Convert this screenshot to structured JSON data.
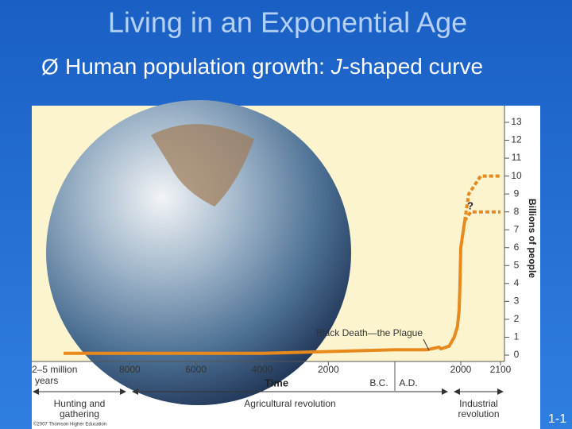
{
  "slide": {
    "title": "Living in an Exponential Age",
    "bullet_prefix": "Human population growth: ",
    "bullet_em": "J",
    "bullet_suffix": "-shaped curve",
    "page_number": "1-1"
  },
  "chart_data": {
    "type": "line",
    "y_label": "Billions of people",
    "x_label": "Time",
    "x_start_label": [
      "2–5 million",
      "years"
    ],
    "x": [
      -10000,
      -8000,
      -6000,
      -4000,
      -2000,
      0,
      1000,
      1340,
      1400,
      1650,
      1800,
      1900,
      1950,
      1970,
      2000,
      2010
    ],
    "values": [
      0.1,
      0.1,
      0.1,
      0.1,
      0.2,
      0.3,
      0.3,
      0.45,
      0.35,
      0.5,
      1,
      1.6,
      2.5,
      3.7,
      6,
      7.5
    ],
    "color": "#e8891e",
    "projections": [
      {
        "x": [
          2010,
          2020,
          2050,
          2100
        ],
        "values": [
          7.5,
          9,
          10,
          10
        ]
      },
      {
        "x": [
          2010,
          2025,
          2100
        ],
        "values": [
          7.5,
          8,
          8
        ]
      }
    ],
    "projection_label": "?",
    "annotation": "Black Death—the Plague",
    "bc_label": "B.C.",
    "ad_label": "A.D.",
    "eras": [
      [
        "Hunting and",
        "gathering"
      ],
      [
        "Agricultural revolution"
      ],
      [
        "Industrial",
        "revolution"
      ]
    ],
    "credit": "©2007 Thomson Higher Education",
    "xlim": [
      -10000,
      2100
    ],
    "xticks": [
      {
        "value": -8000,
        "label": "8000"
      },
      {
        "value": -6000,
        "label": "6000"
      },
      {
        "value": -4000,
        "label": "4000"
      },
      {
        "value": -2000,
        "label": "2000"
      },
      2000,
      2100
    ],
    "ylim": [
      0,
      13
    ],
    "yticks": [
      0,
      1,
      2,
      3,
      4,
      5,
      6,
      7,
      8,
      9,
      10,
      11,
      12,
      13
    ]
  }
}
